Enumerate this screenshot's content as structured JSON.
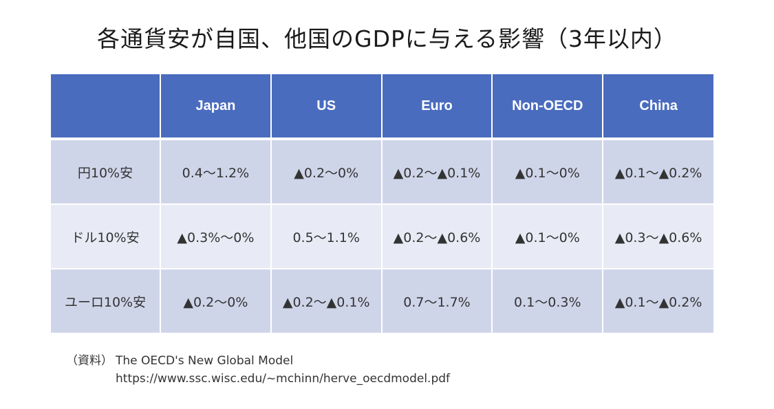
{
  "title": "各通貨安が自国、他国のGDPに与える影響（3年以内）",
  "table": {
    "headers": [
      "",
      "Japan",
      "US",
      "Euro",
      "Non-OECD",
      "China"
    ],
    "rows": [
      {
        "label": "円10%安",
        "cells": [
          "0.4～1.2%",
          "▲0.2～0%",
          "▲0.2～▲0.1%",
          "▲0.1～0%",
          "▲0.1～▲0.2%"
        ]
      },
      {
        "label": "ドル10%安",
        "cells": [
          "▲0.3%～0%",
          "0.5～1.1%",
          "▲0.2～▲0.6%",
          "▲0.1～0%",
          "▲0.3～▲0.6%"
        ]
      },
      {
        "label": "ユーロ10%安",
        "cells": [
          "▲0.2～0%",
          "▲0.2～▲0.1%",
          "0.7～1.7%",
          "0.1～0.3%",
          "▲0.1～▲0.2%"
        ]
      }
    ]
  },
  "source": {
    "label": "（資料）",
    "name": "The OECD's New Global Model",
    "url": "https://www.ssc.wisc.edu/~mchinn/herve_oecdmodel.pdf"
  }
}
